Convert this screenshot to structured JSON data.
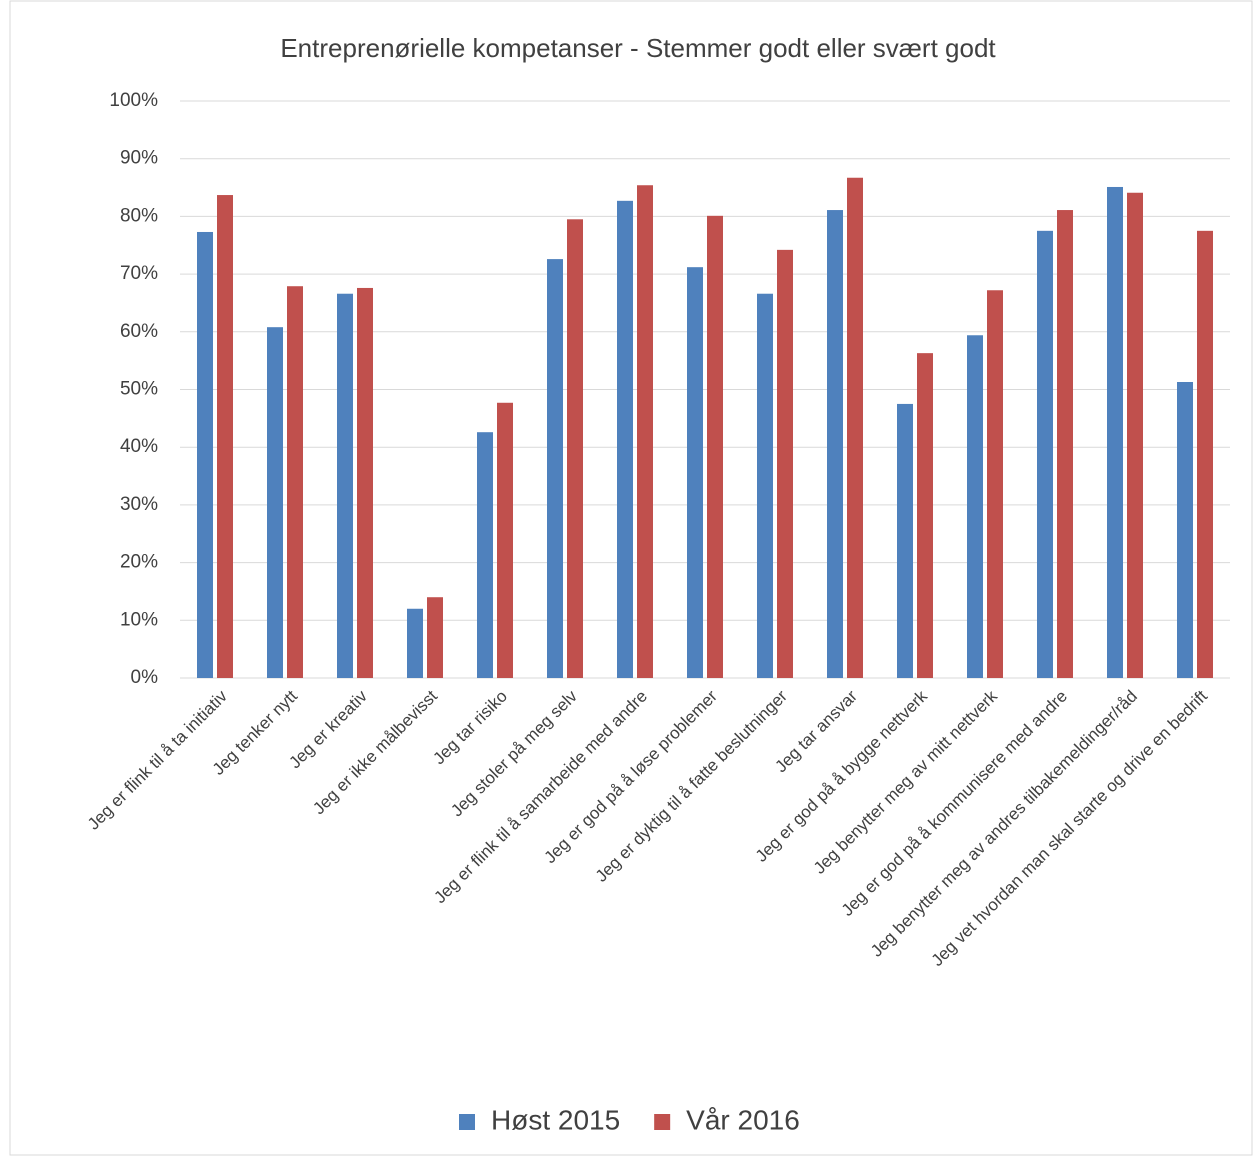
{
  "chart_data": {
    "type": "bar",
    "title": "Entreprenørielle kompetanser - Stemmer godt eller svært godt",
    "categories": [
      "Jeg er flink til å ta initiativ",
      "Jeg tenker nytt",
      "Jeg er kreativ",
      "Jeg er ikke målbevisst",
      "Jeg tar risiko",
      "Jeg stoler på meg selv",
      "Jeg er flink til å samarbeide med andre",
      "Jeg er god på å løse problemer",
      "Jeg er dyktig til å fatte beslutninger",
      "Jeg tar ansvar",
      "Jeg er god på å bygge nettverk",
      "Jeg benytter meg av mitt nettverk",
      "Jeg er god på å kommunisere med andre",
      "Jeg benytter meg av andres tilbakemeldinger/råd",
      "Jeg vet hvordan man skal starte og drive en bedrift"
    ],
    "series": [
      {
        "name": "Høst 2015",
        "color": "#4f81bd",
        "values": [
          77.3,
          60.8,
          66.6,
          12.0,
          42.6,
          72.6,
          82.7,
          71.2,
          66.6,
          81.1,
          47.5,
          59.4,
          77.5,
          85.1,
          51.3
        ]
      },
      {
        "name": "Vår 2016",
        "color": "#c0504d",
        "values": [
          83.7,
          67.9,
          67.6,
          14.0,
          47.7,
          79.5,
          85.4,
          80.1,
          74.2,
          86.7,
          56.3,
          67.2,
          81.1,
          84.1,
          77.5
        ]
      }
    ],
    "ylim": [
      0,
      100
    ],
    "yticks": [
      {
        "value": 0,
        "label": "0%"
      },
      {
        "value": 10,
        "label": "10%"
      },
      {
        "value": 20,
        "label": "20%"
      },
      {
        "value": 30,
        "label": "30%"
      },
      {
        "value": 40,
        "label": "40%"
      },
      {
        "value": 50,
        "label": "50%"
      },
      {
        "value": 60,
        "label": "60%"
      },
      {
        "value": 70,
        "label": "70%"
      },
      {
        "value": 80,
        "label": "80%"
      },
      {
        "value": 90,
        "label": "90%"
      },
      {
        "value": 100,
        "label": "100%"
      }
    ],
    "grid": true,
    "legend": "bottom"
  }
}
